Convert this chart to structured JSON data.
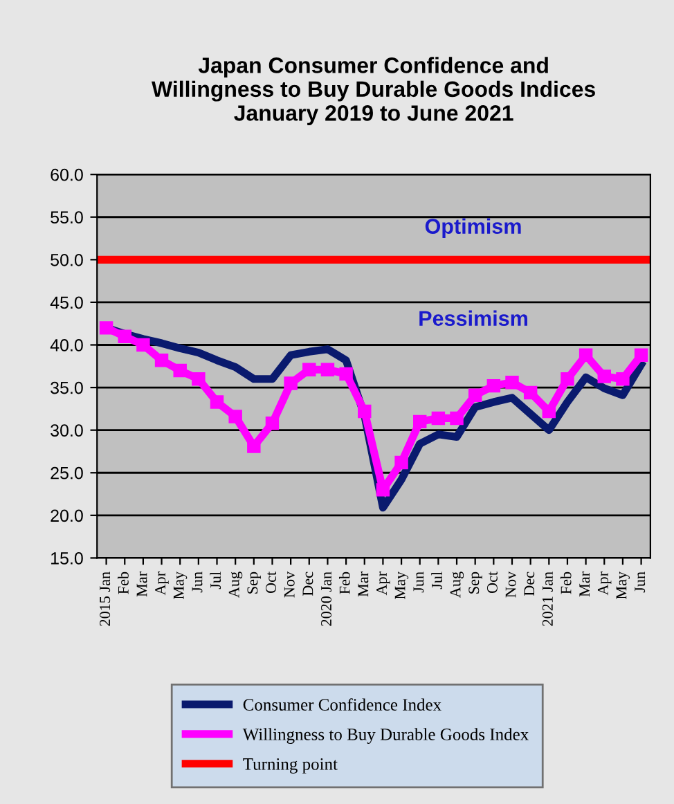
{
  "chart_data": {
    "type": "line",
    "title": "Japan Consumer Confidence and\nWillingness to Buy Durable Goods Indices\nJanuary 2019 to June 2021",
    "categories": [
      "2015 Jan",
      "Feb",
      "Mar",
      "Apr",
      "May",
      "Jun",
      "Jul",
      "Aug",
      "Sep",
      "Oct",
      "Nov",
      "Dec",
      "2020 Jan",
      "Feb",
      "Mar",
      "Apr",
      "May",
      "Jun",
      "Jul",
      "Aug",
      "Sep",
      "Oct",
      "Nov",
      "Dec",
      "2021 Jan",
      "Feb",
      "Mar",
      "Apr",
      "May",
      "Jun"
    ],
    "series": [
      {
        "name": "Consumer Confidence Index",
        "color": "#0a1a6e",
        "marker": "none",
        "values": [
          42.0,
          41.3,
          40.7,
          40.2,
          39.6,
          39.1,
          38.2,
          37.4,
          36.0,
          36.0,
          38.8,
          39.2,
          39.5,
          38.2,
          31.7,
          20.9,
          24.2,
          28.4,
          29.5,
          29.2,
          32.7,
          33.3,
          33.8,
          31.9,
          30.0,
          33.3,
          36.2,
          34.9,
          34.1,
          37.7
        ]
      },
      {
        "name": "Willingness to Buy Durable Goods Index",
        "color": "#ff00ff",
        "marker": "square",
        "values": [
          42.0,
          41.0,
          40.0,
          38.2,
          37.0,
          36.0,
          33.3,
          31.6,
          28.1,
          30.8,
          35.5,
          37.1,
          37.1,
          36.6,
          32.2,
          23.0,
          26.2,
          31.0,
          31.4,
          31.4,
          34.1,
          35.2,
          35.6,
          34.4,
          32.2,
          36.0,
          38.8,
          36.3,
          36.0,
          38.8
        ]
      }
    ],
    "ref_lines": [
      {
        "axis": "y",
        "value": 50,
        "label": "Turning point",
        "color": "#ff0000"
      }
    ],
    "annotations": [
      "Optimism",
      "Pessimism"
    ],
    "ylim": [
      15,
      60
    ],
    "yticks": [
      {
        "value": 15,
        "label": "15.0"
      },
      {
        "value": 20,
        "label": "20.0"
      },
      {
        "value": 25,
        "label": "25.0"
      },
      {
        "value": 30,
        "label": "30.0"
      },
      {
        "value": 35,
        "label": "35.0"
      },
      {
        "value": 40,
        "label": "40.0"
      },
      {
        "value": 45,
        "label": "45.0"
      },
      {
        "value": 50,
        "label": "50.0"
      },
      {
        "value": 55,
        "label": "55.0"
      },
      {
        "value": 60,
        "label": "60.0"
      }
    ],
    "grid": "y",
    "legend": "bottom",
    "line_style": "solid"
  }
}
